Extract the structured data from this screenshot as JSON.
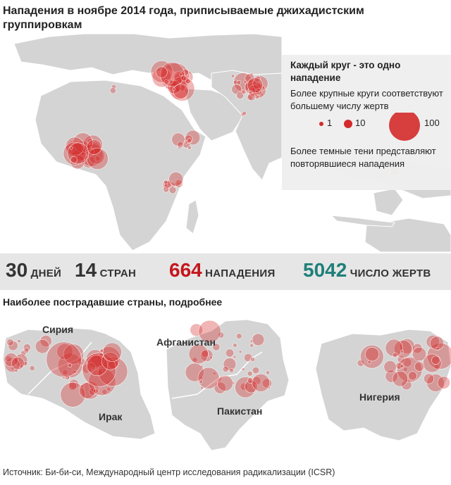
{
  "title": "Нападения в ноябре 2014 года, приписываемые джихадистским группировкам",
  "legend": {
    "heading": "Каждый круг - это одно нападение",
    "size_note": "Более крупные круги соответствуют большему числу жертв",
    "scale": [
      {
        "label": "1",
        "value": 1
      },
      {
        "label": "10",
        "value": 10
      },
      {
        "label": "100",
        "value": 100
      }
    ],
    "shade_note": "Более темные тени представляют повторявшиеся нападения"
  },
  "stats": {
    "days_value": "30",
    "days_label": "ДНЕЙ",
    "countries_value": "14",
    "countries_label": "СТРАН",
    "attacks_value": "664",
    "attacks_label": "НАПАДЕНИЯ",
    "deaths_value": "5042",
    "deaths_label": "ЧИСЛО ЖЕРТВ"
  },
  "subtitle": "Наиболее пострадавшие страны, подробнее",
  "country_maps": [
    {
      "id": "syria-iraq",
      "labels": [
        "Сирия",
        "Ирак"
      ]
    },
    {
      "id": "afghanistan-pakistan",
      "labels": [
        "Афганистан",
        "Пакистан"
      ]
    },
    {
      "id": "nigeria",
      "labels": [
        "Нигерия"
      ]
    }
  ],
  "source": "Источник: Би-би-си, Международный центр исследования радикализации (ICSR)",
  "colors": {
    "land": "#d4d4d4",
    "border": "#ffffff",
    "attack": "#d42a2a",
    "attacks_text": "#c4161c",
    "deaths_text": "#1f7f7a",
    "stats_bg": "#e6e6e6",
    "legend_bg": "#eeeeee"
  }
}
